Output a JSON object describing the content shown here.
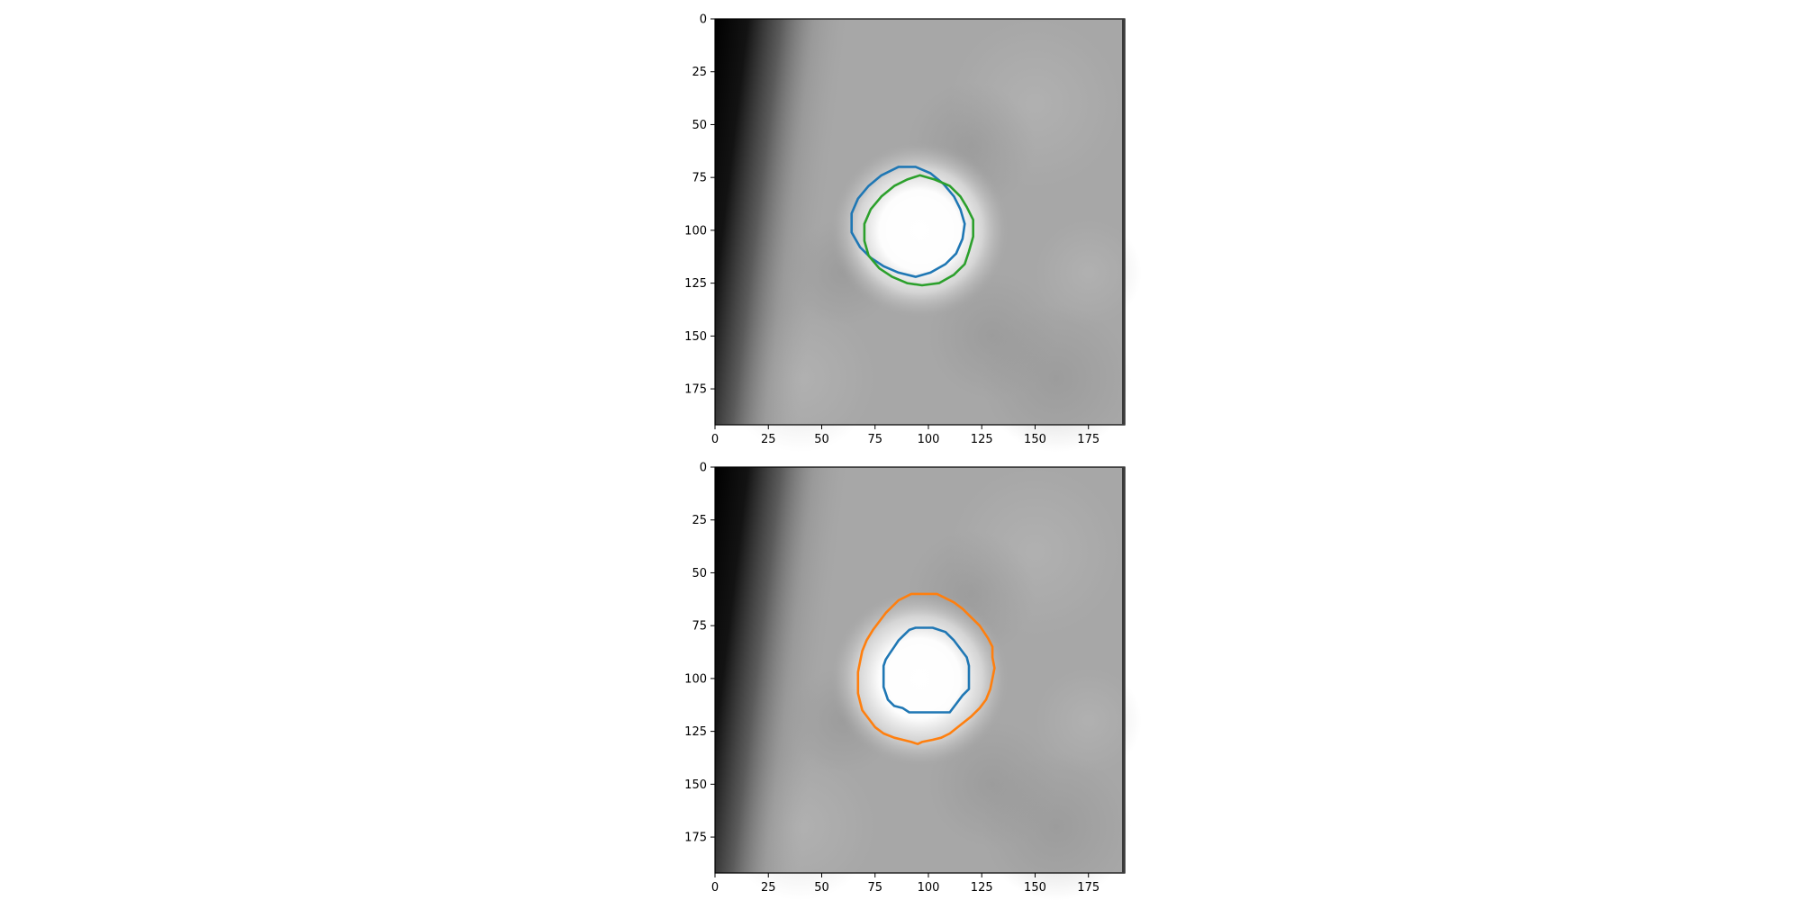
{
  "chart_data": [
    {
      "type": "image-contour",
      "xlim": [
        0,
        192
      ],
      "ylim": [
        192,
        0
      ],
      "xticks": [
        0,
        25,
        50,
        75,
        100,
        125,
        150,
        175
      ],
      "yticks": [
        0,
        25,
        50,
        75,
        100,
        125,
        150,
        175
      ],
      "xtick_labels": [
        "0",
        "25",
        "50",
        "75",
        "100",
        "125",
        "150",
        "175"
      ],
      "ytick_labels": [
        "0",
        "25",
        "50",
        "75",
        "100",
        "125",
        "150",
        "175"
      ],
      "background": "grayscale image, dark band on left edge, bright blob centered near (96, 100)",
      "series": [
        {
          "color": "#1f77b4",
          "points": [
            [
              86,
              70
            ],
            [
              94,
              70
            ],
            [
              101,
              73
            ],
            [
              107,
              78
            ],
            [
              112,
              84
            ],
            [
              115,
              90
            ],
            [
              117,
              97
            ],
            [
              116,
              104
            ],
            [
              113,
              111
            ],
            [
              108,
              116
            ],
            [
              101,
              120
            ],
            [
              94,
              122
            ],
            [
              86,
              120
            ],
            [
              79,
              117
            ],
            [
              73,
              113
            ],
            [
              68,
              108
            ],
            [
              64,
              101
            ],
            [
              64,
              92
            ],
            [
              67,
              85
            ],
            [
              72,
              79
            ],
            [
              78,
              74
            ]
          ]
        },
        {
          "color": "#2ca02c",
          "points": [
            [
              96,
              74
            ],
            [
              103,
              76
            ],
            [
              110,
              79
            ],
            [
              115,
              84
            ],
            [
              118,
              89
            ],
            [
              121,
              95
            ],
            [
              121,
              103
            ],
            [
              119,
              110
            ],
            [
              117,
              116
            ],
            [
              112,
              121
            ],
            [
              105,
              125
            ],
            [
              97,
              126
            ],
            [
              90,
              125
            ],
            [
              83,
              122
            ],
            [
              77,
              118
            ],
            [
              72,
              112
            ],
            [
              70,
              105
            ],
            [
              70,
              97
            ],
            [
              73,
              90
            ],
            [
              78,
              84
            ],
            [
              84,
              79
            ],
            [
              90,
              76
            ]
          ]
        }
      ]
    },
    {
      "type": "image-contour",
      "xlim": [
        0,
        192
      ],
      "ylim": [
        192,
        0
      ],
      "xticks": [
        0,
        25,
        50,
        75,
        100,
        125,
        150,
        175
      ],
      "yticks": [
        0,
        25,
        50,
        75,
        100,
        125,
        150,
        175
      ],
      "xtick_labels": [
        "0",
        "25",
        "50",
        "75",
        "100",
        "125",
        "150",
        "175"
      ],
      "ytick_labels": [
        "0",
        "25",
        "50",
        "75",
        "100",
        "125",
        "150",
        "175"
      ],
      "background": "grayscale image, dark band on left edge, bright blob centered near (96, 100)",
      "series": [
        {
          "color": "#ff7f0e",
          "points": [
            [
              92,
              60
            ],
            [
              104,
              60
            ],
            [
              108,
              62
            ],
            [
              112,
              64
            ],
            [
              116,
              67
            ],
            [
              120,
              71
            ],
            [
              124,
              75
            ],
            [
              126,
              78
            ],
            [
              128,
              81
            ],
            [
              130,
              85
            ],
            [
              130,
              90
            ],
            [
              131,
              95
            ],
            [
              130,
              100
            ],
            [
              129,
              105
            ],
            [
              127,
              110
            ],
            [
              124,
              114
            ],
            [
              120,
              118
            ],
            [
              115,
              122
            ],
            [
              110,
              126
            ],
            [
              106,
              128
            ],
            [
              102,
              129
            ],
            [
              97,
              130
            ],
            [
              95,
              131
            ],
            [
              92,
              130
            ],
            [
              88,
              129
            ],
            [
              84,
              128
            ],
            [
              79,
              126
            ],
            [
              75,
              123
            ],
            [
              72,
              119
            ],
            [
              69,
              115
            ],
            [
              68,
              111
            ],
            [
              67,
              107
            ],
            [
              67,
              102
            ],
            [
              67,
              97
            ],
            [
              68,
              92
            ],
            [
              69,
              87
            ],
            [
              71,
              82
            ],
            [
              74,
              77
            ],
            [
              77,
              73
            ],
            [
              80,
              69
            ],
            [
              83,
              66
            ],
            [
              86,
              63
            ]
          ]
        },
        {
          "color": "#1f77b4",
          "points": [
            [
              94,
              76
            ],
            [
              102,
              76
            ],
            [
              108,
              78
            ],
            [
              112,
              82
            ],
            [
              115,
              86
            ],
            [
              118,
              90
            ],
            [
              119,
              94
            ],
            [
              119,
              100
            ],
            [
              119,
              105
            ],
            [
              116,
              108
            ],
            [
              113,
              112
            ],
            [
              110,
              116
            ],
            [
              104,
              116
            ],
            [
              97,
              116
            ],
            [
              91,
              116
            ],
            [
              88,
              114
            ],
            [
              84,
              113
            ],
            [
              81,
              110
            ],
            [
              80,
              107
            ],
            [
              79,
              104
            ],
            [
              79,
              99
            ],
            [
              79,
              94
            ],
            [
              80,
              91
            ],
            [
              82,
              88
            ],
            [
              84,
              85
            ],
            [
              86,
              82
            ],
            [
              88,
              80
            ],
            [
              91,
              77
            ]
          ]
        }
      ]
    }
  ]
}
